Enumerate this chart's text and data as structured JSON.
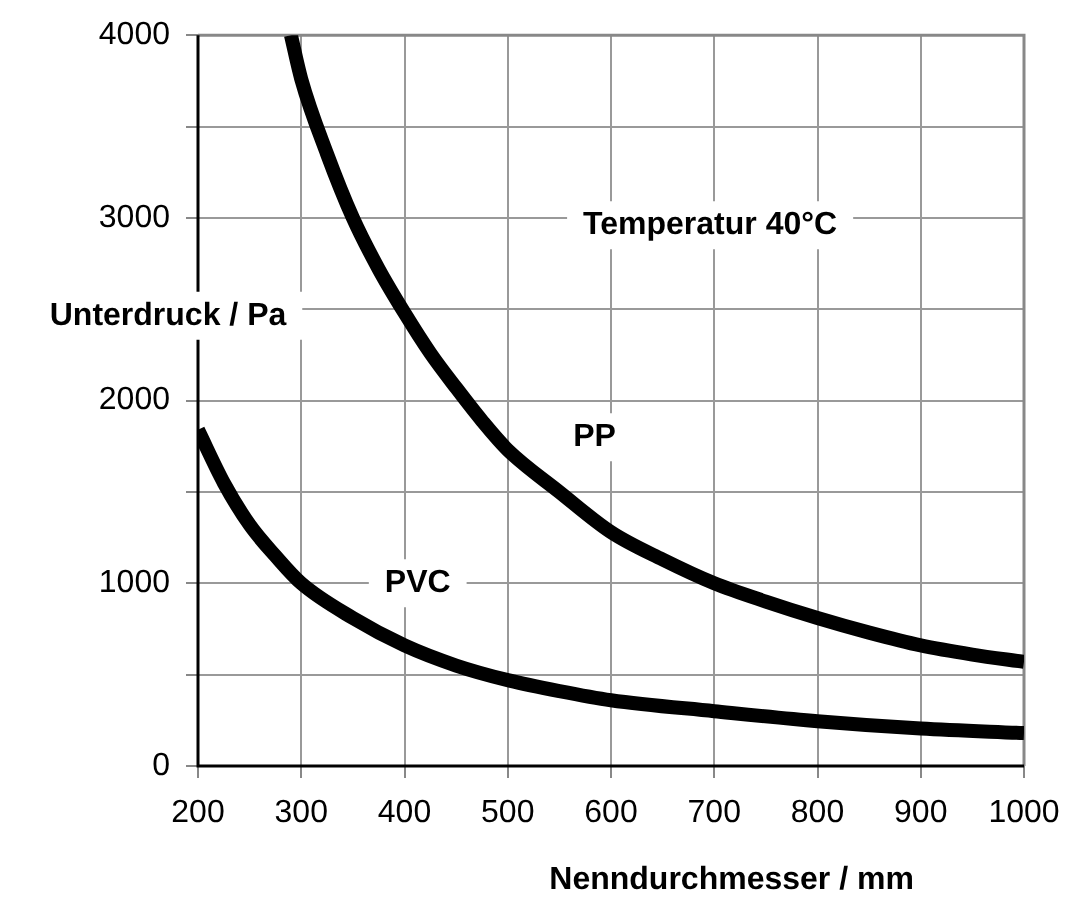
{
  "chart_data": {
    "type": "line",
    "xlabel": "Nenndurchmesser / mm",
    "ylabel": "Unterdruck / Pa",
    "annotations": [
      "Temperatur 40°C"
    ],
    "xlim": [
      200,
      1000
    ],
    "xticks": [
      200,
      300,
      400,
      500,
      600,
      700,
      800,
      900,
      1000
    ],
    "ylim": [
      0,
      4000
    ],
    "yticks": [
      0,
      {
        "value": 500,
        "label": null
      },
      1000,
      {
        "value": 1500,
        "label": null
      },
      2000,
      {
        "value": 2500,
        "label": null
      },
      3000,
      {
        "value": 3500,
        "label": null
      },
      4000
    ],
    "grid": true,
    "legend": false,
    "marker": "none",
    "line_style": "solid",
    "series": [
      {
        "name": "PP",
        "color": "#000000",
        "x": [
          290,
          300,
          325,
          350,
          375,
          400,
          425,
          450,
          475,
          500,
          550,
          600,
          650,
          700,
          750,
          800,
          850,
          900,
          950,
          1000
        ],
        "values": [
          4000,
          3760,
          3350,
          3000,
          2720,
          2480,
          2260,
          2070,
          1890,
          1730,
          1500,
          1280,
          1130,
          1000,
          900,
          810,
          730,
          660,
          610,
          570
        ]
      },
      {
        "name": "PVC",
        "color": "#000000",
        "x": [
          200,
          225,
          250,
          275,
          300,
          350,
          400,
          450,
          500,
          550,
          600,
          700,
          800,
          900,
          1000
        ],
        "values": [
          1840,
          1550,
          1320,
          1150,
          1000,
          810,
          660,
          550,
          470,
          410,
          360,
          300,
          245,
          205,
          180
        ]
      }
    ]
  }
}
